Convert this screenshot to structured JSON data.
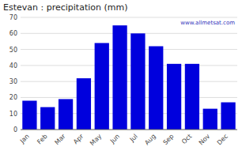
{
  "chart_data": {
    "type": "bar",
    "title": "Estevan : precipitation (mm)",
    "categories": [
      "Jan",
      "Feb",
      "Mar",
      "Apr",
      "May",
      "Jun",
      "Jul",
      "Aug",
      "Sep",
      "Oct",
      "Nov",
      "Dec"
    ],
    "values": [
      18,
      14,
      19,
      32,
      54,
      65,
      60,
      52,
      41,
      41,
      13,
      17
    ],
    "color": "#0000DD",
    "ylim": [
      0,
      70
    ],
    "yticks": [
      0,
      10,
      20,
      30,
      40,
      50,
      60,
      70
    ],
    "grid": true,
    "annotation": "www.allmetsat.com"
  }
}
